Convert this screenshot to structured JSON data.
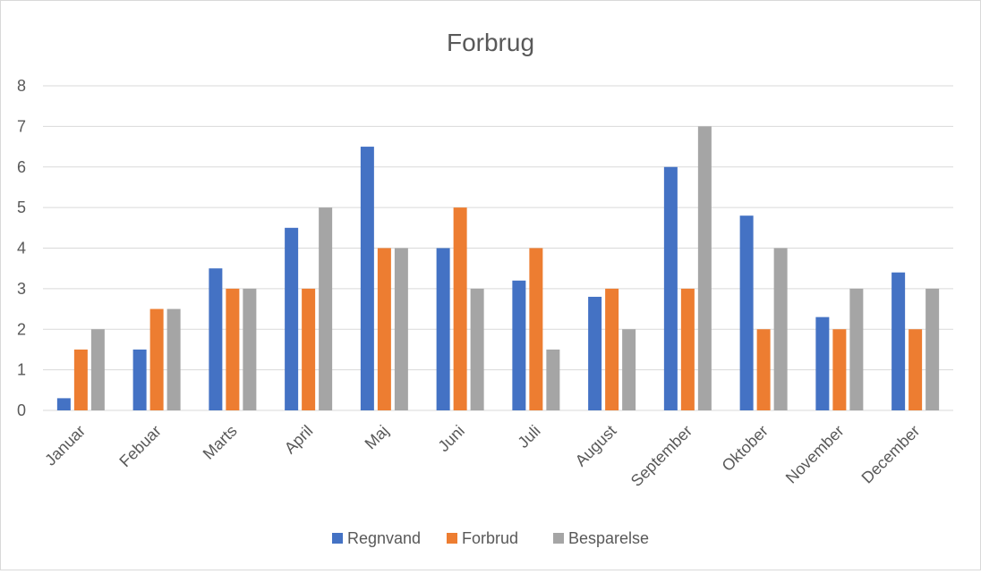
{
  "chart_data": {
    "type": "bar",
    "title": "Forbrug",
    "categories": [
      "Januar",
      "Febuar",
      "Marts",
      "April",
      "Maj",
      "Juni",
      "Juli",
      "August",
      "September",
      "Oktober",
      "November",
      "December"
    ],
    "series": [
      {
        "name": "Regnvand",
        "color": "#4472c4",
        "values": [
          0.3,
          1.5,
          3.5,
          4.5,
          6.5,
          4,
          3.2,
          2.8,
          6,
          4.8,
          2.3,
          3.4
        ]
      },
      {
        "name": "Forbrud",
        "color": "#ed7d31",
        "values": [
          1.5,
          2.5,
          3,
          3,
          4,
          5,
          4,
          3,
          3,
          2,
          2,
          2
        ]
      },
      {
        "name": "Besparelse",
        "color": "#a5a5a5",
        "values": [
          2,
          2.5,
          3,
          5,
          4,
          3,
          1.5,
          2,
          7,
          4,
          3,
          3
        ]
      }
    ],
    "ylim": [
      0,
      8
    ],
    "yticks": [
      0,
      1,
      2,
      3,
      4,
      5,
      6,
      7,
      8
    ],
    "xlabel": "",
    "ylabel": "",
    "grid": true,
    "legend": "bottom"
  }
}
